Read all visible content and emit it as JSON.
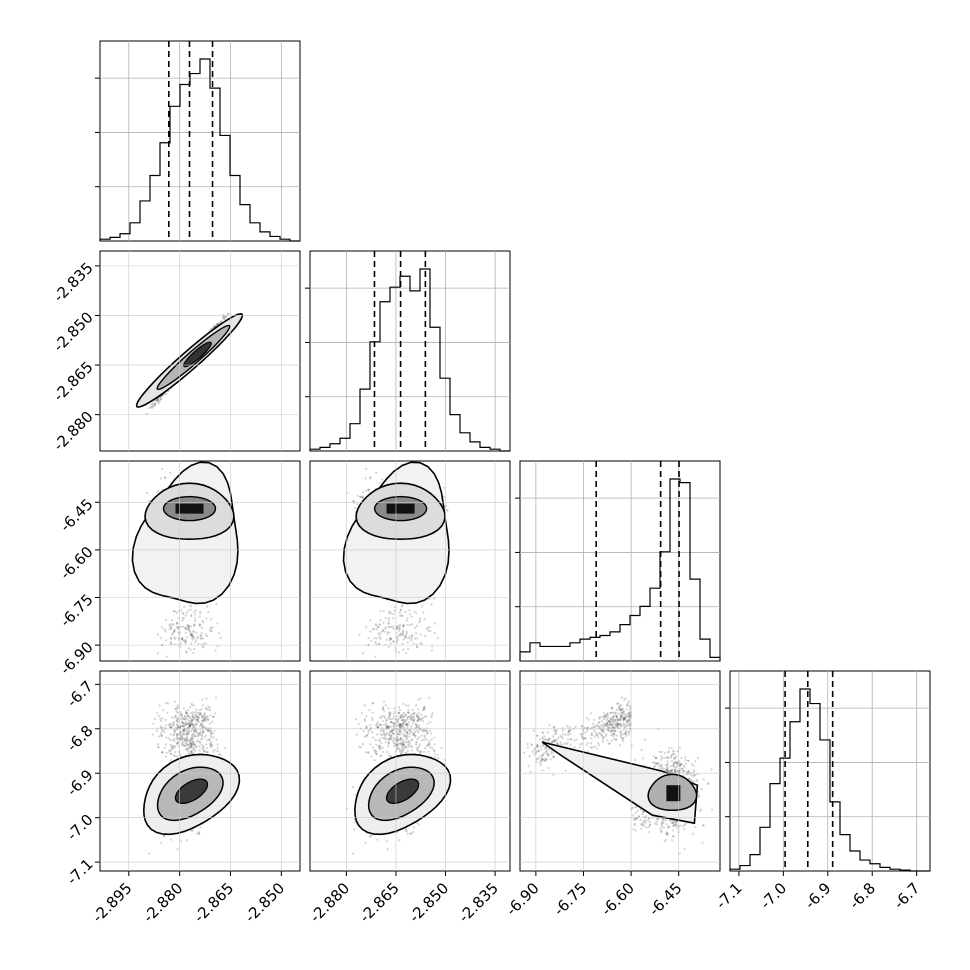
{
  "chart_data": {
    "type": "corner",
    "title": "",
    "params": [
      {
        "range": [
          -2.9035,
          -2.8445
        ],
        "ticks": [
          "-2.895",
          "-2.880",
          "-2.865",
          "-2.850"
        ],
        "tick_values": [
          -2.895,
          -2.88,
          -2.865,
          -2.85
        ],
        "quantiles": [
          -2.8832,
          -2.8771,
          -2.8703
        ]
      },
      {
        "range": [
          -2.891,
          -2.8305
        ],
        "ticks": [
          "-2.880",
          "-2.865",
          "-2.850",
          "-2.835"
        ],
        "tick_values": [
          -2.88,
          -2.865,
          -2.85,
          -2.835
        ],
        "quantiles": [
          -2.8715,
          -2.8636,
          -2.8561
        ]
      },
      {
        "range": [
          -6.95,
          -6.32
        ],
        "ticks": [
          "-6.90",
          "-6.75",
          "-6.60",
          "-6.45"
        ],
        "tick_values": [
          -6.9,
          -6.75,
          -6.6,
          -6.45
        ],
        "quantiles": [
          -6.71,
          -6.507,
          -6.449
        ]
      },
      {
        "range": [
          -7.12,
          -6.67
        ],
        "ticks": [
          "-7.1",
          "-7.0",
          "-6.9",
          "-6.8",
          "-6.7"
        ],
        "tick_values": [
          -7.1,
          -7.0,
          -6.9,
          -6.8,
          -6.7
        ],
        "quantiles": [
          -6.996,
          -6.945,
          -6.889
        ]
      }
    ],
    "histograms": [
      {
        "values": [
          0.01,
          0.02,
          0.04,
          0.1,
          0.22,
          0.36,
          0.54,
          0.74,
          0.86,
          0.92,
          1.0,
          0.84,
          0.58,
          0.36,
          0.2,
          0.1,
          0.05,
          0.025,
          0.01,
          0.0
        ]
      },
      {
        "values": [
          0.01,
          0.02,
          0.04,
          0.07,
          0.15,
          0.34,
          0.6,
          0.82,
          0.9,
          0.96,
          0.88,
          1.0,
          0.68,
          0.4,
          0.2,
          0.1,
          0.05,
          0.02,
          0.01,
          0.0
        ]
      },
      {
        "values": [
          0.05,
          0.1,
          0.08,
          0.08,
          0.08,
          0.1,
          0.12,
          0.13,
          0.14,
          0.16,
          0.2,
          0.25,
          0.3,
          0.4,
          0.6,
          1.0,
          0.98,
          0.45,
          0.12,
          0.02
        ]
      },
      {
        "values": [
          0.01,
          0.03,
          0.09,
          0.24,
          0.48,
          0.62,
          0.82,
          1.0,
          0.92,
          0.72,
          0.38,
          0.2,
          0.11,
          0.06,
          0.04,
          0.02,
          0.01,
          0.005,
          0.0,
          0.0
        ]
      }
    ]
  }
}
